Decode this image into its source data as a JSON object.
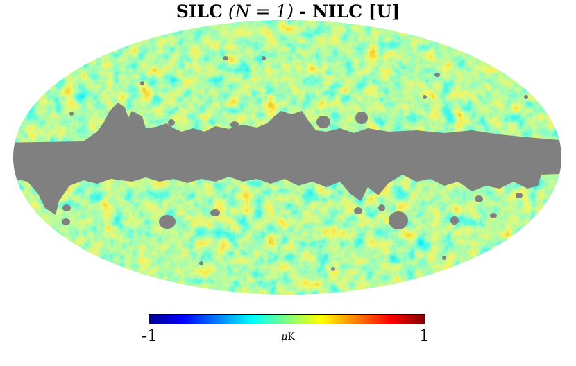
{
  "title": {
    "prefix": "SILC",
    "math": "(N = 1)",
    "suffix": " - NILC [U]"
  },
  "map": {
    "projection": "mollweide",
    "masked_color": "#808080",
    "mask_description": "galactic plane and point-source mask"
  },
  "colorbar": {
    "min_label": "-1",
    "max_label": "1",
    "unit_mu": "μ",
    "unit_rest": "K",
    "colormap": [
      "#00008f",
      "#0000ff",
      "#00ffff",
      "#ffff00",
      "#ff0000",
      "#800000"
    ]
  }
}
